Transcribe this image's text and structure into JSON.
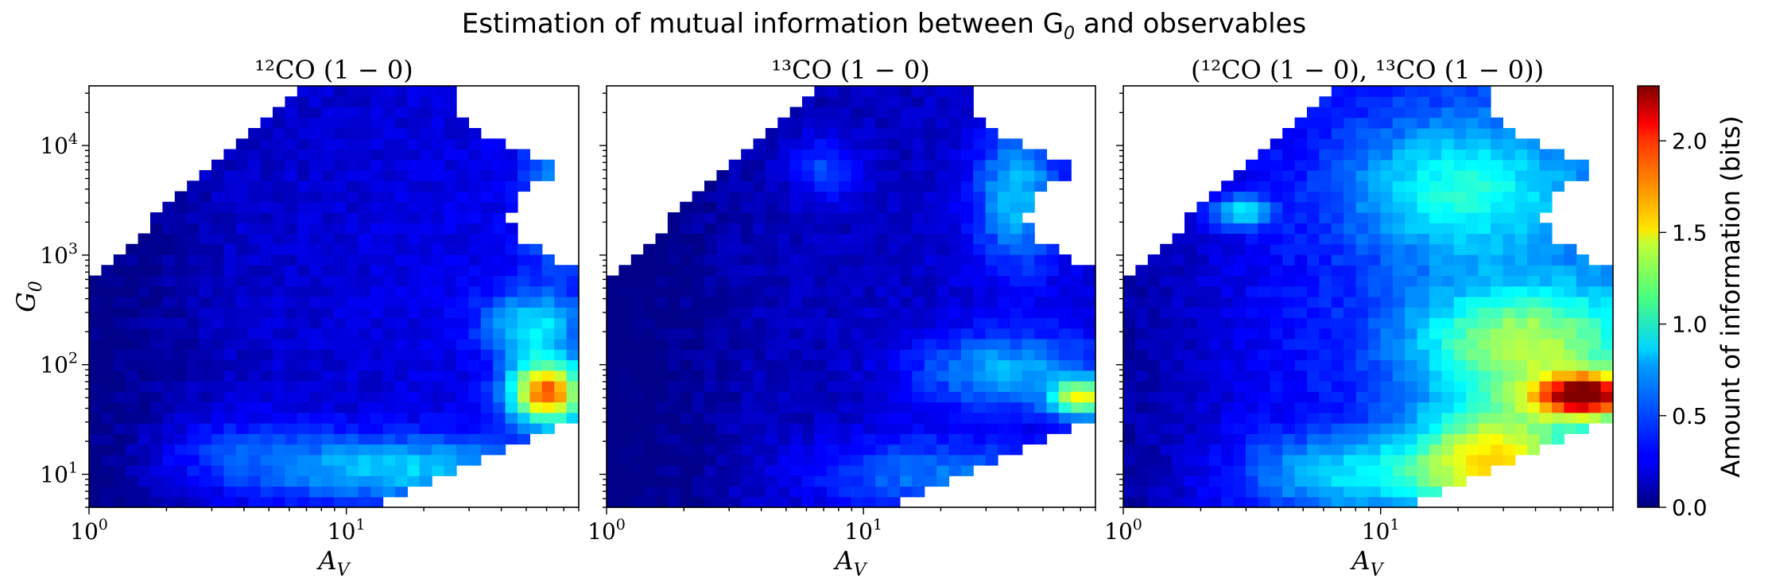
{
  "figure": {
    "title": "Estimation of mutual information between G",
    "title_sub": "0",
    "title_tail": " and observables"
  },
  "chart_data": [
    {
      "type": "heatmap",
      "panel": "left",
      "title": "¹²CO (1 − 0)",
      "xlabel": "A",
      "xlabel_sub": "V",
      "ylabel": "G",
      "ylabel_sub": "0",
      "xscale": "log",
      "yscale": "log",
      "xlim": [
        1,
        80
      ],
      "ylim": [
        5,
        35000
      ],
      "xticks": [
        {
          "value": 1,
          "base": "10",
          "exp": "0"
        },
        {
          "value": 10,
          "base": "10",
          "exp": "1"
        }
      ],
      "yticks": [
        {
          "value": 10,
          "base": "10",
          "exp": "1"
        },
        {
          "value": 100,
          "base": "10",
          "exp": "2"
        },
        {
          "value": 1000,
          "base": "10",
          "exp": "3"
        },
        {
          "value": 10000,
          "base": "10",
          "exp": "4"
        }
      ],
      "colormap": "jet",
      "value_range": [
        0,
        2.3
      ],
      "hotspots": [
        {
          "logAv": 1.78,
          "logG0": 1.75,
          "sx": 0.1,
          "sy": 0.2,
          "amp": 1.55
        },
        {
          "logAv": 1.72,
          "logG0": 2.35,
          "sx": 0.13,
          "sy": 0.22,
          "amp": 0.55
        },
        {
          "logAv": 1.2,
          "logG0": 1.05,
          "sx": 0.38,
          "sy": 0.22,
          "amp": 0.55
        },
        {
          "logAv": 1.65,
          "logG0": 0.8,
          "sx": 0.12,
          "sy": 0.1,
          "amp": 0.45
        },
        {
          "logAv": 1.5,
          "logG0": 0.7,
          "sx": 0.06,
          "sy": 0.08,
          "amp": 0.4
        },
        {
          "logAv": 1.8,
          "logG0": 3.55,
          "sx": 0.08,
          "sy": 0.45,
          "amp": 0.35
        },
        {
          "logAv": 0.55,
          "logG0": 1.2,
          "sx": 0.25,
          "sy": 0.25,
          "amp": 0.22
        }
      ],
      "base_level": 0.2
    },
    {
      "type": "heatmap",
      "panel": "middle",
      "title": "¹³CO (1 − 0)",
      "xlabel": "A",
      "xlabel_sub": "V",
      "xscale": "log",
      "yscale": "log",
      "xlim": [
        1,
        80
      ],
      "ylim": [
        5,
        35000
      ],
      "xticks": [
        {
          "value": 1,
          "base": "10",
          "exp": "0"
        },
        {
          "value": 10,
          "base": "10",
          "exp": "1"
        }
      ],
      "colormap": "jet",
      "value_range": [
        0,
        2.3
      ],
      "hotspots": [
        {
          "logAv": 1.85,
          "logG0": 1.7,
          "sx": 0.08,
          "sy": 0.12,
          "amp": 1.1
        },
        {
          "logAv": 1.55,
          "logG0": 1.95,
          "sx": 0.25,
          "sy": 0.25,
          "amp": 0.5
        },
        {
          "logAv": 1.6,
          "logG0": 3.55,
          "sx": 0.12,
          "sy": 0.45,
          "amp": 0.55
        },
        {
          "logAv": 1.25,
          "logG0": 1.0,
          "sx": 0.35,
          "sy": 0.25,
          "amp": 0.4
        },
        {
          "logAv": 0.85,
          "logG0": 3.8,
          "sx": 0.1,
          "sy": 0.2,
          "amp": 0.3
        }
      ],
      "base_level": 0.15
    },
    {
      "type": "heatmap",
      "panel": "right",
      "title": "(¹²CO (1 − 0), ¹³CO (1 − 0))",
      "xlabel": "A",
      "xlabel_sub": "V",
      "xscale": "log",
      "yscale": "log",
      "xlim": [
        1,
        80
      ],
      "ylim": [
        5,
        35000
      ],
      "xticks": [
        {
          "value": 1,
          "base": "10",
          "exp": "0"
        },
        {
          "value": 10,
          "base": "10",
          "exp": "1"
        }
      ],
      "colormap": "jet",
      "value_range": [
        0,
        2.3
      ],
      "hotspots": [
        {
          "logAv": 1.8,
          "logG0": 1.72,
          "sx": 0.14,
          "sy": 0.14,
          "amp": 1.75
        },
        {
          "logAv": 1.45,
          "logG0": 1.15,
          "sx": 0.22,
          "sy": 0.35,
          "amp": 1.05
        },
        {
          "logAv": 1.55,
          "logG0": 2.2,
          "sx": 0.3,
          "sy": 0.35,
          "amp": 0.85
        },
        {
          "logAv": 1.5,
          "logG0": 0.8,
          "sx": 0.12,
          "sy": 0.12,
          "amp": 0.5
        },
        {
          "logAv": 1.3,
          "logG0": 3.6,
          "sx": 0.3,
          "sy": 0.45,
          "amp": 0.55
        },
        {
          "logAv": 0.9,
          "logG0": 1.0,
          "sx": 0.3,
          "sy": 0.25,
          "amp": 0.5
        },
        {
          "logAv": 0.45,
          "logG0": 3.4,
          "sx": 0.08,
          "sy": 0.1,
          "amp": 0.6
        }
      ],
      "base_level": 0.35
    }
  ],
  "colorbar": {
    "label": "Amount of information (bits)",
    "ticks": [
      "0.0",
      "0.5",
      "1.0",
      "1.5",
      "2.0"
    ],
    "tick_values": [
      0,
      0.5,
      1.0,
      1.5,
      2.0
    ],
    "range": [
      0,
      2.3
    ]
  }
}
